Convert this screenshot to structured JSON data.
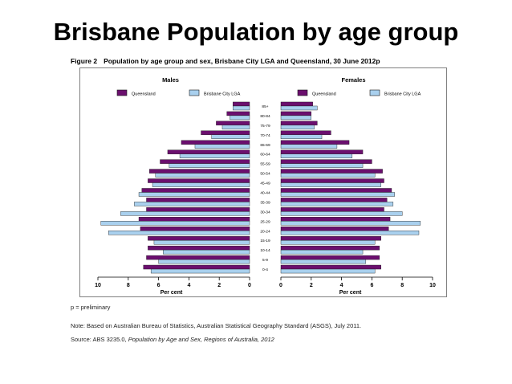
{
  "slide": {
    "title": "Brisbane Population by age group"
  },
  "figure": {
    "label": "Figure 2",
    "caption": "Population by age group and sex, Brisbane City LGA and Queensland, 30 June 2012p"
  },
  "notes": {
    "preliminary": "p = preliminary",
    "basis": "Note: Based on Australian Bureau of Statistics, Australian Statistical Geography Standard (ASGS), July 2011.",
    "source_prefix": "Source: ABS 3235.0, ",
    "source_title": "Population by Age and Sex, Regions of Australia, 2012"
  },
  "colors": {
    "queensland": "#6b0f6e",
    "brisbane": "#a9d0ee",
    "bar_stroke": "#1a1a1a",
    "text": "#000000"
  },
  "chart_data": {
    "type": "bar",
    "orientation": "horizontal-population-pyramid",
    "xlabel": "Per cent",
    "xlim": [
      0,
      10
    ],
    "xticks": [
      10,
      8,
      6,
      4,
      2,
      0
    ],
    "xticks_right": [
      0,
      2,
      4,
      6,
      8,
      10
    ],
    "categories": [
      "85+",
      "80-84",
      "75-79",
      "70-74",
      "65-69",
      "60-64",
      "55-59",
      "50-54",
      "45-49",
      "40-44",
      "35-39",
      "30-34",
      "25-29",
      "20-24",
      "15-19",
      "10-14",
      "5-9",
      "0-4"
    ],
    "panels": [
      {
        "title": "Males",
        "legend": [
          "Queensland",
          "Brisbane City LGA"
        ],
        "series": [
          {
            "name": "Queensland",
            "values": [
              1.1,
              1.5,
              2.2,
              3.2,
              4.5,
              5.4,
              5.9,
              6.6,
              6.7,
              7.1,
              6.8,
              6.8,
              7.3,
              7.2,
              6.7,
              6.7,
              6.8,
              7.0
            ]
          },
          {
            "name": "Brisbane City LGA",
            "values": [
              1.1,
              1.3,
              1.8,
              2.5,
              3.6,
              4.6,
              5.3,
              6.2,
              6.4,
              7.3,
              7.6,
              8.5,
              9.8,
              9.3,
              6.3,
              5.7,
              6.0,
              6.5
            ]
          }
        ]
      },
      {
        "title": "Females",
        "legend": [
          "Queensland",
          "Brisbane City LGA"
        ],
        "series": [
          {
            "name": "Queensland",
            "values": [
              2.1,
              2.0,
              2.4,
              3.3,
              4.5,
              5.4,
              6.0,
              6.7,
              6.8,
              7.3,
              7.0,
              6.8,
              7.2,
              7.1,
              6.6,
              6.5,
              6.5,
              6.6
            ]
          },
          {
            "name": "Brisbane City LGA",
            "values": [
              2.4,
              2.0,
              2.2,
              2.7,
              3.7,
              4.7,
              5.4,
              6.2,
              6.6,
              7.5,
              7.4,
              8.0,
              9.2,
              9.1,
              6.2,
              5.4,
              5.6,
              6.2
            ]
          }
        ]
      }
    ]
  }
}
